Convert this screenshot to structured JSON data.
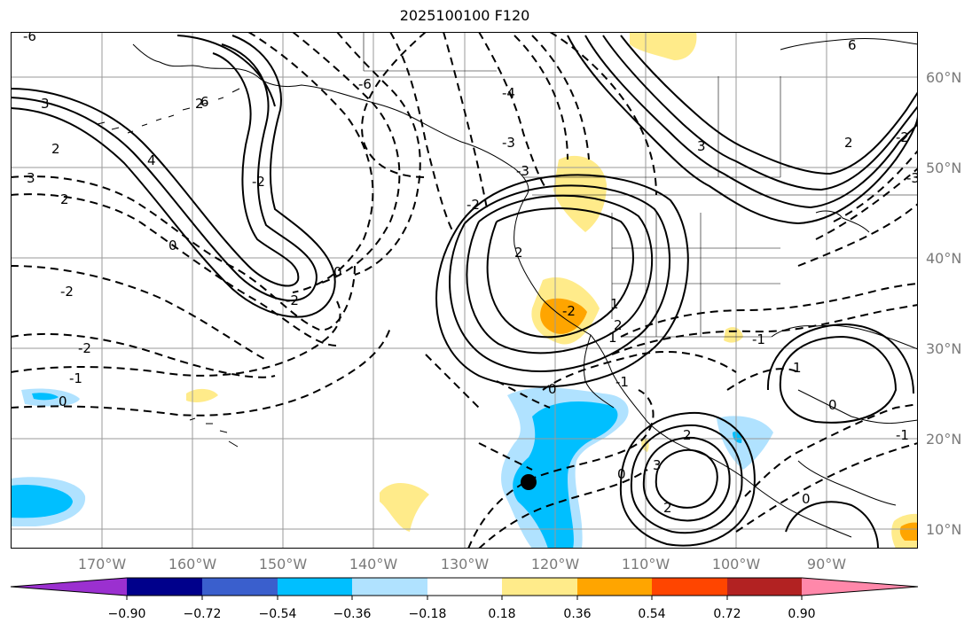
{
  "title": "2025100100 F120",
  "lat_labels": [
    "60°N",
    "50°N",
    "40°N",
    "30°N",
    "20°N",
    "10°N"
  ],
  "lon_labels": [
    "170°W",
    "160°W",
    "150°W",
    "140°W",
    "130°W",
    "120°W",
    "110°W",
    "100°W",
    "90°W"
  ],
  "colorbar": {
    "ticks": [
      "−0.90",
      "−0.72",
      "−0.54",
      "−0.36",
      "−0.18",
      "0.18",
      "0.36",
      "0.54",
      "0.72",
      "0.90"
    ],
    "colors": [
      "#9b30d0",
      "#00008b",
      "#3a5fcd",
      "#00bfff",
      "#b0e2ff",
      "#ffffff",
      "#ffeb8a",
      "#ffa500",
      "#ff4500",
      "#b22222",
      "#ff88aa"
    ]
  },
  "contour_labels": [
    "3",
    "2",
    "4",
    "3",
    "2",
    "0",
    "-2",
    "-2",
    "-2",
    "-1",
    "0",
    "-2",
    "2",
    "-6",
    "-4",
    "-3",
    "-2",
    "0",
    "2",
    "-2",
    "-3",
    "1",
    "2",
    "1",
    "0",
    "3",
    "2",
    "0",
    "-1",
    "-1",
    "3",
    "2",
    "0",
    "0",
    "1",
    "-1",
    "2",
    "6",
    "-6",
    "6",
    "-3",
    "-2"
  ],
  "marker": "storm-center"
}
